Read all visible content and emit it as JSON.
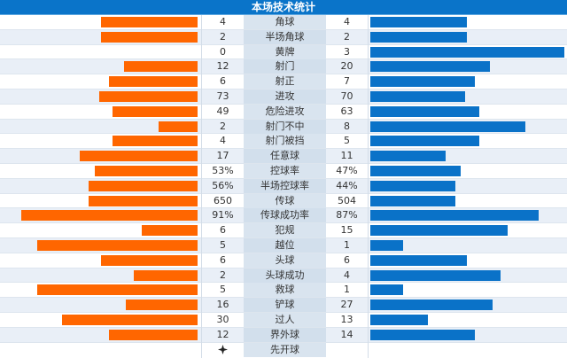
{
  "header": {
    "title": "本场技术统计"
  },
  "colors": {
    "home_bar": "#ff6600",
    "away_bar": "#0a72c8",
    "header_bg": "#0a74c9"
  },
  "stats": [
    {
      "label": "角球",
      "home": "4",
      "away": "4",
      "home_w": 109,
      "away_w": 109
    },
    {
      "label": "半场角球",
      "home": "2",
      "away": "2",
      "home_w": 109,
      "away_w": 109
    },
    {
      "label": "黄牌",
      "home": "0",
      "away": "3",
      "home_w": 0,
      "away_w": 219
    },
    {
      "label": "射门",
      "home": "12",
      "away": "20",
      "home_w": 83,
      "away_w": 135
    },
    {
      "label": "射正",
      "home": "6",
      "away": "7",
      "home_w": 100,
      "away_w": 118
    },
    {
      "label": "进攻",
      "home": "73",
      "away": "70",
      "home_w": 111,
      "away_w": 107
    },
    {
      "label": "危险进攻",
      "home": "49",
      "away": "63",
      "home_w": 96,
      "away_w": 123
    },
    {
      "label": "射门不中",
      "home": "2",
      "away": "8",
      "home_w": 44,
      "away_w": 175
    },
    {
      "label": "射门被挡",
      "home": "4",
      "away": "5",
      "home_w": 96,
      "away_w": 123
    },
    {
      "label": "任意球",
      "home": "17",
      "away": "11",
      "home_w": 133,
      "away_w": 85
    },
    {
      "label": "控球率",
      "home": "53%",
      "away": "47%",
      "home_w": 116,
      "away_w": 102
    },
    {
      "label": "半场控球率",
      "home": "56%",
      "away": "44%",
      "home_w": 123,
      "away_w": 96
    },
    {
      "label": "传球",
      "home": "650",
      "away": "504",
      "home_w": 123,
      "away_w": 96
    },
    {
      "label": "传球成功率",
      "home": "91%",
      "away": "87%",
      "home_w": 199,
      "away_w": 190
    },
    {
      "label": "犯规",
      "home": "6",
      "away": "15",
      "home_w": 63,
      "away_w": 155
    },
    {
      "label": "越位",
      "home": "5",
      "away": "1",
      "home_w": 181,
      "away_w": 37
    },
    {
      "label": "头球",
      "home": "6",
      "away": "6",
      "home_w": 109,
      "away_w": 109
    },
    {
      "label": "头球成功",
      "home": "2",
      "away": "4",
      "home_w": 72,
      "away_w": 147
    },
    {
      "label": "救球",
      "home": "5",
      "away": "1",
      "home_w": 181,
      "away_w": 37
    },
    {
      "label": "铲球",
      "home": "16",
      "away": "27",
      "home_w": 81,
      "away_w": 138
    },
    {
      "label": "过人",
      "home": "30",
      "away": "13",
      "home_w": 153,
      "away_w": 65
    },
    {
      "label": "界外球",
      "home": "12",
      "away": "14",
      "home_w": 100,
      "away_w": 118
    }
  ],
  "kickoff": {
    "label": "先开球",
    "home_icon": "kickoff-star-icon",
    "away": ""
  }
}
